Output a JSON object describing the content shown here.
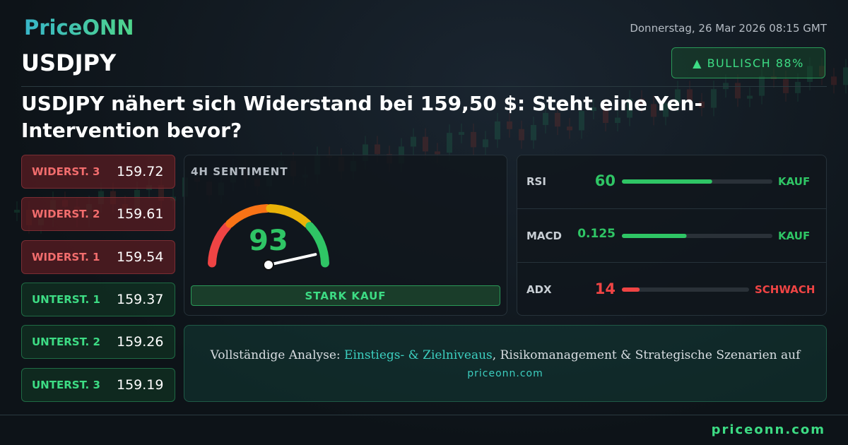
{
  "header": {
    "brand": "PriceONN",
    "date": "Donnerstag, 26 Mar 2026 08:15 GMT",
    "symbol": "USDJPY",
    "badge": "▲ BULLISCH 88%"
  },
  "headline": "USDJPY nähert sich Widerstand bei 159,50 $: Steht eine Yen-Intervention bevor?",
  "levels": [
    {
      "label": "WIDERST. 3",
      "value": 159.72,
      "kind": "resistance"
    },
    {
      "label": "WIDERST. 2",
      "value": 159.61,
      "kind": "resistance"
    },
    {
      "label": "WIDERST. 1",
      "value": 159.54,
      "kind": "resistance"
    },
    {
      "label": "UNTERST. 1",
      "value": 159.37,
      "kind": "support"
    },
    {
      "label": "UNTERST. 2",
      "value": 159.26,
      "kind": "support"
    },
    {
      "label": "UNTERST. 3",
      "value": 159.19,
      "kind": "support"
    }
  ],
  "sentiment": {
    "title": "4H SENTIMENT",
    "score": 93,
    "verdict": "STARK KAUF"
  },
  "indicators": [
    {
      "name": "RSI",
      "value": 60,
      "signal": "KAUF",
      "color": "#2fc565"
    },
    {
      "name": "MACD",
      "value": 0.125,
      "signal": "KAUF",
      "color": "#2fc565"
    },
    {
      "name": "ADX",
      "value": 14,
      "signal": "SCHWACH",
      "color": "#ef4444"
    }
  ],
  "cta": {
    "prefix": "Vollständige Analyse: ",
    "highlight": "Einstiegs- & Zielniveaus",
    "suffix": ", Risikomanagement & Strategische Szenarien auf",
    "link": "priceonn.com"
  },
  "footer": {
    "site": "priceonn.com"
  }
}
